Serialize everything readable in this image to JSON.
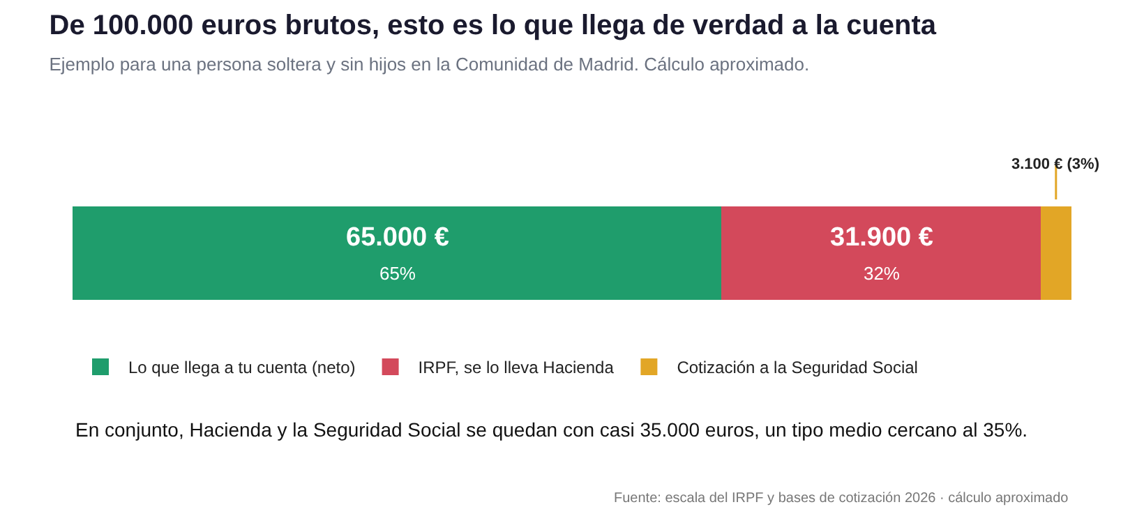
{
  "chart_data": {
    "type": "bar",
    "orientation": "horizontal",
    "stacked": true,
    "title": "De 100.000 euros brutos, esto es lo que llega de verdad a la cuenta",
    "subtitle": "Ejemplo para una persona soltera y sin hijos en la Comunidad de Madrid. Cálculo aproximado.",
    "categories": [
      null
    ],
    "xlim": [
      0,
      100000
    ],
    "legend": "bottom",
    "series": [
      {
        "name": "Lo que llega a tu cuenta (neto)",
        "color": "#1f9d6c",
        "values": [
          65000
        ],
        "value_labels": [
          "65.000 €\n65%"
        ]
      },
      {
        "name": "IRPF, se lo lleva Hacienda",
        "color": "#d3495b",
        "values": [
          31900
        ],
        "value_labels": [
          "31.900 €\n32%"
        ]
      },
      {
        "name": "Cotización a la Seguridad Social",
        "color": "#e2a626",
        "values": [
          3100
        ],
        "value_labels": [
          "3.100 € (3%)"
        ]
      }
    ],
    "annotations": [
      "En conjunto, Hacienda y la Seguridad Social se quedan con casi 35.000 euros, un tipo medio cercano al 35%.",
      "Fuente: escala del IRPF y bases de cotización 2026 · cálculo aproximado"
    ]
  }
}
